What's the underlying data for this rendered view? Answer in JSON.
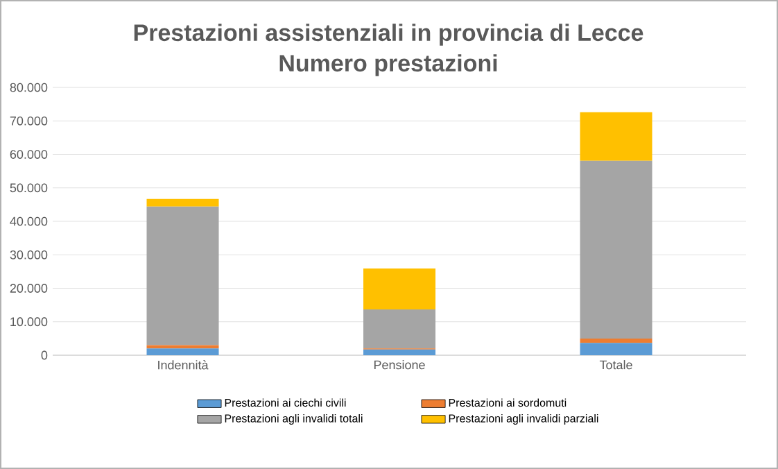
{
  "chart_data": {
    "type": "bar",
    "stacked": true,
    "title": "Prestazioni assistenziali in provincia di Lecce",
    "subtitle": "Numero prestazioni",
    "categories": [
      "Indennità",
      "Pensione",
      "Totale"
    ],
    "series": [
      {
        "name": "Prestazioni ai ciechi civili",
        "color": "#5b9bd5",
        "values": [
          2000,
          1700,
          3700
        ]
      },
      {
        "name": "Prestazioni ai sordomuti",
        "color": "#ed7d31",
        "values": [
          1000,
          300,
          1300
        ]
      },
      {
        "name": "Prestazioni agli invalidi totali",
        "color": "#a5a5a5",
        "values": [
          41400,
          11700,
          53100
        ]
      },
      {
        "name": "Prestazioni agli invalidi parziali",
        "color": "#ffc000",
        "values": [
          2300,
          12200,
          14500
        ]
      }
    ],
    "ylim": [
      0,
      80000
    ],
    "yticks": [
      {
        "value": 0,
        "label": "0"
      },
      {
        "value": 10000,
        "label": "10.000"
      },
      {
        "value": 20000,
        "label": "20.000"
      },
      {
        "value": 30000,
        "label": "30.000"
      },
      {
        "value": 40000,
        "label": "40.000"
      },
      {
        "value": 50000,
        "label": "50.000"
      },
      {
        "value": 60000,
        "label": "60.000"
      },
      {
        "value": 70000,
        "label": "70.000"
      },
      {
        "value": 80000,
        "label": "80.000"
      }
    ],
    "grid": "y",
    "legend": "bottom"
  }
}
